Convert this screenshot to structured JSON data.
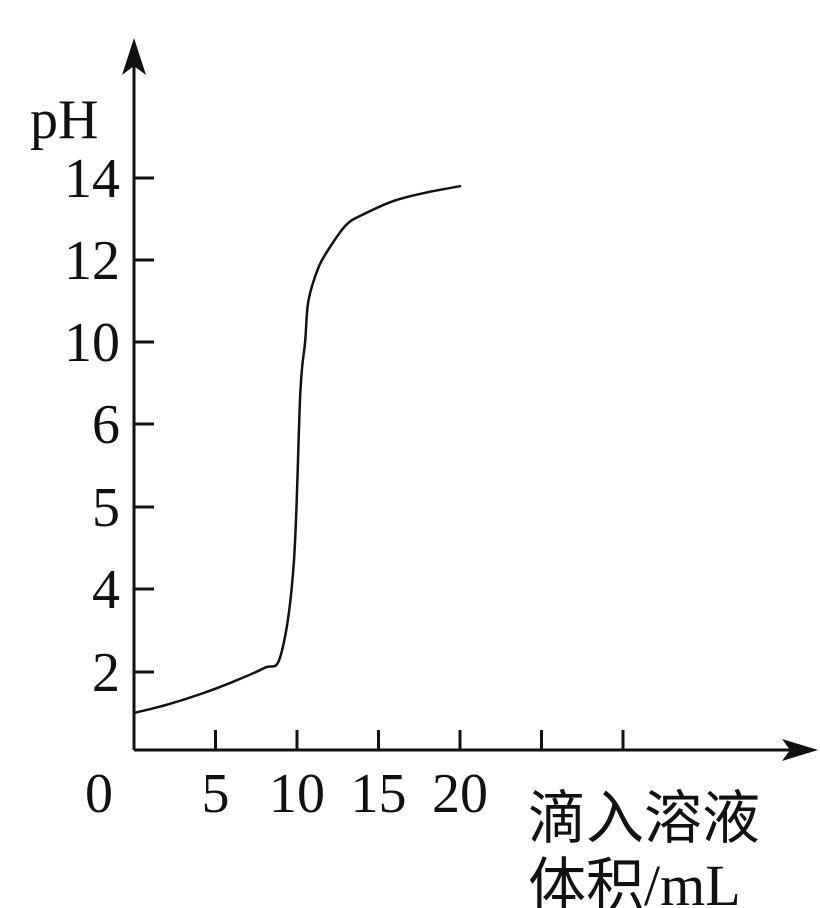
{
  "chart_data": {
    "type": "line",
    "ylabel": "pH",
    "xlabel_line1": "滴入溶液",
    "xlabel_line2": "体积/mL",
    "origin_label": "0",
    "y_ticks": [
      {
        "label": "2",
        "value": 2
      },
      {
        "label": "4",
        "value": 4
      },
      {
        "label": "5",
        "value": 5
      },
      {
        "label": "6",
        "value": 6
      },
      {
        "label": "10",
        "value": 10
      },
      {
        "label": "12",
        "value": 12
      },
      {
        "label": "14",
        "value": 14
      }
    ],
    "x_ticks": [
      {
        "label": "5",
        "value": 5
      },
      {
        "label": "10",
        "value": 10
      },
      {
        "label": "15",
        "value": 15
      },
      {
        "label": "20",
        "value": 20
      },
      {
        "label": "",
        "value": 25
      },
      {
        "label": "",
        "value": 30
      }
    ],
    "series": [
      {
        "x": [
          0,
          2,
          4,
          6,
          8,
          9,
          9.8,
          10.2,
          10.5,
          10.7,
          11.3,
          12,
          13,
          14,
          16,
          18,
          20
        ],
        "y": [
          1,
          1.2,
          1.45,
          1.75,
          2.1,
          2.4,
          4.3,
          7.5,
          10,
          11,
          11.8,
          12.3,
          12.85,
          13.1,
          13.45,
          13.65,
          13.8
        ]
      }
    ]
  }
}
